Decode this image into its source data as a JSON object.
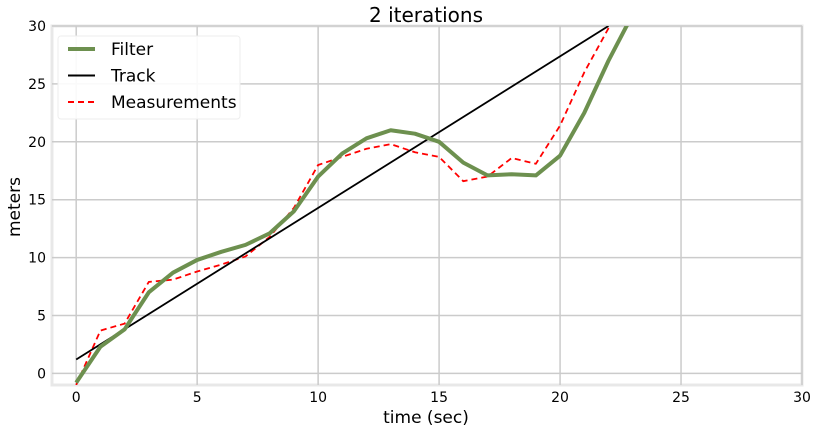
{
  "chart_data": {
    "type": "line",
    "title": "2 iterations",
    "xlabel": "time (sec)",
    "ylabel": "meters",
    "xlim": [
      -1,
      30
    ],
    "ylim": [
      -1,
      30
    ],
    "xticks": [
      0,
      5,
      10,
      15,
      20,
      25,
      30
    ],
    "yticks": [
      0,
      5,
      10,
      15,
      20,
      25,
      30
    ],
    "grid": true,
    "legend_position": "top-left",
    "series": [
      {
        "name": "Filter",
        "style": "solid",
        "color": "#6d904f",
        "x": [
          0,
          1,
          2,
          3,
          4,
          5,
          6,
          7,
          8,
          9,
          10,
          11,
          12,
          13,
          14,
          15,
          16,
          17,
          18,
          19,
          20,
          21,
          22,
          23
        ],
        "y": [
          -0.8,
          2.3,
          3.8,
          7.0,
          8.7,
          9.8,
          10.5,
          11.1,
          12.1,
          14.0,
          17.0,
          19.0,
          20.3,
          21.0,
          20.7,
          20.0,
          18.2,
          17.1,
          17.2,
          17.1,
          18.8,
          22.5,
          27.0,
          31.0
        ]
      },
      {
        "name": "Track",
        "style": "solid",
        "color": "#000000",
        "x": [
          0,
          22
        ],
        "y": [
          1.2,
          30
        ]
      },
      {
        "name": "Measurements",
        "style": "dashed",
        "color": "#ff0000",
        "x": [
          0,
          1,
          2,
          3,
          4,
          5,
          6,
          7,
          8,
          9,
          10,
          11,
          12,
          13,
          14,
          15,
          16,
          17,
          18,
          19,
          20,
          21,
          22,
          23
        ],
        "y": [
          -1.0,
          3.7,
          4.3,
          7.9,
          8.1,
          8.8,
          9.4,
          10.1,
          11.8,
          14.3,
          18.0,
          18.7,
          19.4,
          19.8,
          19.1,
          18.7,
          16.6,
          17.0,
          18.6,
          18.1,
          21.4,
          26.0,
          29.8,
          33.0
        ]
      }
    ]
  }
}
